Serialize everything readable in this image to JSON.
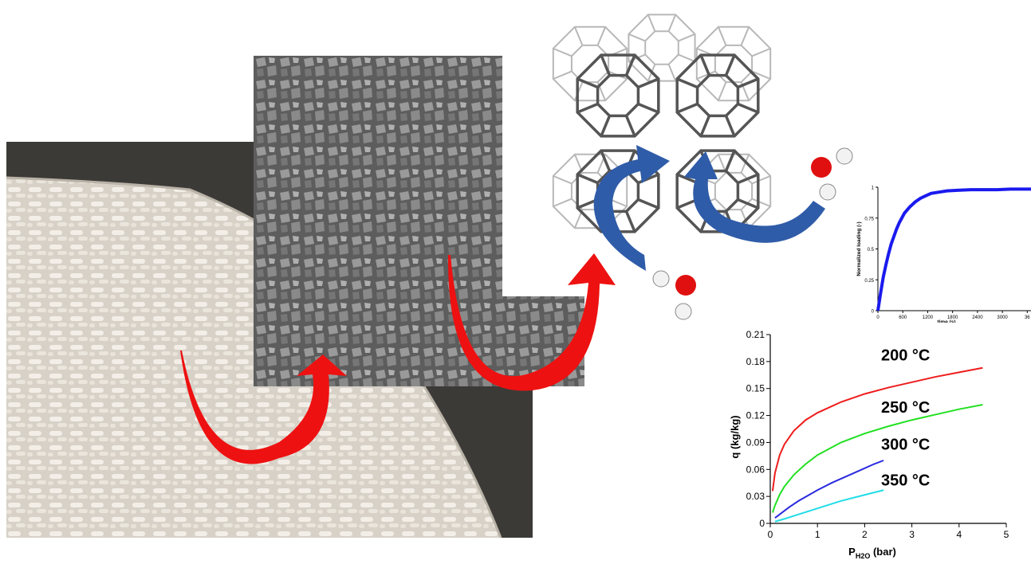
{
  "chart_data": [
    {
      "type": "line",
      "title": "",
      "xlabel": "time (s)",
      "ylabel": "Normalized loading (-)",
      "xlim": [
        0,
        3600
      ],
      "ylim": [
        0,
        1
      ],
      "x_ticks": [
        "0",
        "600",
        "1200",
        "1800",
        "2400",
        "3000",
        "36"
      ],
      "y_ticks": [
        "0",
        "0.25",
        "0.5",
        "0.75",
        "1"
      ],
      "grid": false,
      "series": [
        {
          "color": "#1a1aee",
          "x": [
            0,
            60,
            120,
            180,
            240,
            300,
            360,
            420,
            480,
            540,
            600,
            720,
            840,
            960,
            1080,
            1200,
            1380,
            1560,
            1800,
            2100,
            2400,
            2700,
            3000,
            3300,
            3600
          ],
          "y": [
            0.0,
            0.14,
            0.27,
            0.37,
            0.46,
            0.54,
            0.6,
            0.66,
            0.71,
            0.75,
            0.79,
            0.84,
            0.88,
            0.91,
            0.93,
            0.95,
            0.96,
            0.97,
            0.975,
            0.98,
            0.98,
            0.98,
            0.985,
            0.985,
            0.985
          ]
        }
      ]
    },
    {
      "type": "line",
      "title": "",
      "xlabel": "P",
      "xlabel_sub": "H2O",
      "xlabel_unit": " (bar)",
      "ylabel": "q (kg/kg)",
      "xlim": [
        0,
        5
      ],
      "ylim": [
        0,
        0.21
      ],
      "x_ticks": [
        "0",
        "1",
        "2",
        "3",
        "4",
        "5"
      ],
      "y_ticks": [
        "0",
        "0.03",
        "0.06",
        "0.09",
        "0.12",
        "0.15",
        "0.18",
        "0.21"
      ],
      "grid": false,
      "series": [
        {
          "name": "200 °C",
          "color": "#ee1c1c",
          "x": [
            0.05,
            0.1,
            0.2,
            0.3,
            0.5,
            0.75,
            1.0,
            1.5,
            2.0,
            2.5,
            3.0,
            3.5,
            4.0,
            4.5
          ],
          "y": [
            0.036,
            0.056,
            0.076,
            0.088,
            0.103,
            0.115,
            0.123,
            0.135,
            0.144,
            0.151,
            0.157,
            0.163,
            0.168,
            0.173
          ]
        },
        {
          "name": "250 °C",
          "color": "#22e022",
          "x": [
            0.05,
            0.1,
            0.2,
            0.3,
            0.5,
            0.75,
            1.0,
            1.5,
            2.0,
            2.5,
            3.0,
            3.5,
            4.0,
            4.5
          ],
          "y": [
            0.012,
            0.02,
            0.032,
            0.041,
            0.054,
            0.066,
            0.076,
            0.09,
            0.1,
            0.108,
            0.115,
            0.121,
            0.127,
            0.132
          ]
        },
        {
          "name": "300 °C",
          "color": "#2a2ae0",
          "x": [
            0.1,
            0.2,
            0.4,
            0.6,
            0.8,
            1.0,
            1.3,
            1.6,
            1.9,
            2.2,
            2.4
          ],
          "y": [
            0.006,
            0.01,
            0.018,
            0.025,
            0.031,
            0.037,
            0.045,
            0.052,
            0.059,
            0.066,
            0.07
          ]
        },
        {
          "name": "350 °C",
          "color": "#22dde6",
          "x": [
            0.1,
            0.3,
            0.6,
            0.9,
            1.2,
            1.5,
            1.8,
            2.1,
            2.4
          ],
          "y": [
            0.002,
            0.005,
            0.01,
            0.015,
            0.02,
            0.025,
            0.029,
            0.033,
            0.037
          ]
        }
      ]
    }
  ],
  "colors": {
    "red_arrow": "#ee1111",
    "blue_arrow": "#2f5ca8",
    "oxygen": "#e01010",
    "hydrogen": "#f2f2f2",
    "framework": "#555555"
  },
  "icons": [
    "pellets-photo",
    "sem-micrograph",
    "zeolite-framework",
    "water-molecule"
  ]
}
